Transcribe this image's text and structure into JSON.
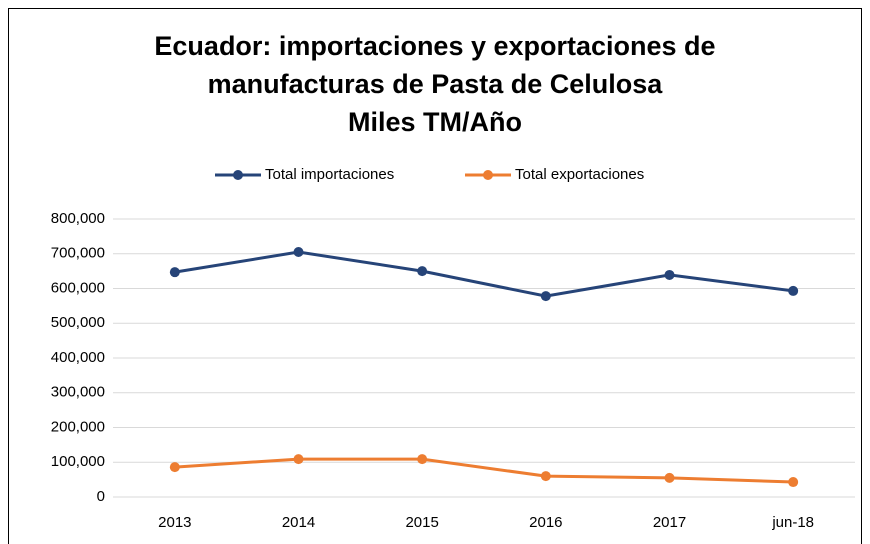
{
  "chart_data": {
    "type": "line",
    "title": [
      "Ecuador: importaciones y exportaciones de",
      "manufacturas de Pasta de Celulosa",
      "Miles TM/Año"
    ],
    "categories": [
      "2013",
      "2014",
      "2015",
      "2016",
      "2017",
      "jun-18"
    ],
    "series": [
      {
        "name": "Total importaciones",
        "color": "#264478",
        "values": [
          647000,
          705000,
          650000,
          578000,
          639000,
          593000
        ]
      },
      {
        "name": "Total exportaciones",
        "color": "#ed7d31",
        "values": [
          86000,
          109000,
          109000,
          60000,
          55000,
          43000
        ]
      }
    ],
    "ylim": [
      0,
      800000
    ],
    "yticks": [
      0,
      {
        "value": 100000,
        "label": "100,000"
      },
      {
        "value": 200000,
        "label": "200,000"
      },
      {
        "value": 300000,
        "label": "300,000"
      },
      {
        "value": 400000,
        "label": "400,000"
      },
      {
        "value": 500000,
        "label": "500,000"
      },
      {
        "value": 600000,
        "label": "600,000"
      },
      {
        "value": 700000,
        "label": "700,000"
      },
      {
        "value": 800000,
        "label": "800,000"
      }
    ],
    "grid": true,
    "legend": "top"
  }
}
